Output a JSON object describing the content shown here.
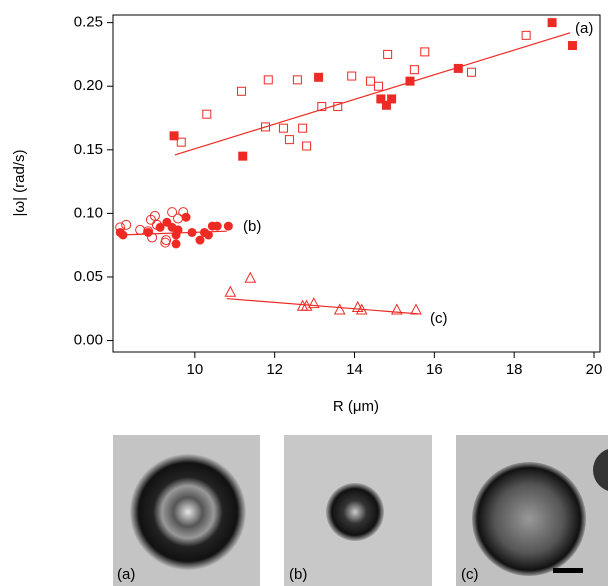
{
  "chart_data": {
    "type": "scatter",
    "x_label": "R (μm)",
    "y_label": "|ω| (rad/s)",
    "xlim": [
      7.95,
      20.15
    ],
    "ylim": [
      -0.009,
      0.256
    ],
    "xticks": [
      10,
      12,
      14,
      16,
      18,
      20
    ],
    "yticks": [
      {
        "value": 0,
        "label": "0.00"
      },
      0.05,
      {
        "value": 0.1,
        "label": "0.10"
      },
      0.15,
      {
        "value": 0.2,
        "label": "0.20"
      },
      0.25
    ],
    "annotations": [
      "(a)",
      "(b)",
      "(c)"
    ],
    "series": [
      {
        "color": "#ee2a24",
        "marker": "square-filled",
        "x": [
          9.48,
          11.2,
          13.1,
          14.66,
          14.8,
          14.93,
          15.39,
          16.6,
          18.95,
          19.46
        ],
        "values": [
          0.161,
          0.145,
          0.207,
          0.19,
          0.185,
          0.19,
          0.204,
          0.214,
          0.25,
          0.232
        ]
      },
      {
        "color": "#ee2a24",
        "marker": "square-open",
        "x": [
          9.66,
          10.3,
          11.17,
          11.77,
          11.84,
          12.22,
          12.37,
          12.57,
          12.7,
          12.8,
          13.18,
          13.58,
          13.93,
          14.4,
          14.6,
          14.83,
          15.5,
          15.76,
          16.93,
          18.3
        ],
        "values": [
          0.156,
          0.178,
          0.196,
          0.168,
          0.205,
          0.167,
          0.158,
          0.205,
          0.167,
          0.153,
          0.184,
          0.184,
          0.208,
          0.204,
          0.2,
          0.225,
          0.213,
          0.227,
          0.211,
          0.24
        ]
      },
      {
        "color": "#ee2a24",
        "marker": "circle-filled",
        "x": [
          8.13,
          8.2,
          8.83,
          9.13,
          9.3,
          9.43,
          9.53,
          9.58,
          9.78,
          9.53,
          9.93,
          10.13,
          10.24,
          10.34,
          10.44,
          10.56,
          10.84
        ],
        "values": [
          0.085,
          0.083,
          0.085,
          0.089,
          0.093,
          0.089,
          0.083,
          0.087,
          0.097,
          0.076,
          0.085,
          0.079,
          0.085,
          0.083,
          0.09,
          0.09,
          0.09
        ]
      },
      {
        "color": "#ee2a24",
        "marker": "circle-open",
        "x": [
          8.13,
          8.28,
          8.63,
          8.83,
          8.9,
          9.0,
          9.05,
          8.93,
          9.28,
          9.26,
          9.43,
          9.58,
          9.71
        ],
        "values": [
          0.089,
          0.091,
          0.087,
          0.086,
          0.095,
          0.098,
          0.091,
          0.081,
          0.079,
          0.077,
          0.101,
          0.096,
          0.101
        ]
      },
      {
        "color": "#ee2a24",
        "marker": "triangle-open",
        "x": [
          10.89,
          11.39,
          12.7,
          12.8,
          12.98,
          13.63,
          14.08,
          14.18,
          15.06,
          15.54
        ],
        "values": [
          0.038,
          0.049,
          0.027,
          0.027,
          0.029,
          0.024,
          0.026,
          0.024,
          0.024,
          0.024
        ]
      },
      {
        "color": "#ee2a24",
        "marker": "line",
        "x": [
          9.5,
          19.4
        ],
        "values": [
          0.146,
          0.242
        ]
      },
      {
        "color": "#ee2a24",
        "marker": "line",
        "x": [
          8.1,
          10.8
        ],
        "values": [
          0.083,
          0.086
        ]
      },
      {
        "color": "#ee2a24",
        "marker": "line",
        "x": [
          10.8,
          15.6
        ],
        "values": [
          0.033,
          0.021
        ]
      }
    ]
  },
  "images": [
    {
      "label": "(a)"
    },
    {
      "label": "(b)"
    },
    {
      "label": "(c)"
    }
  ]
}
